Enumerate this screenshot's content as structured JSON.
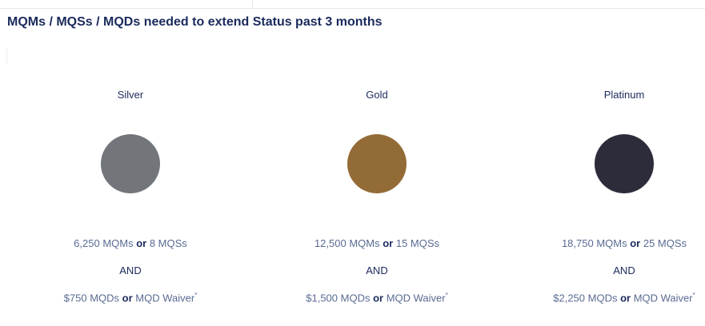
{
  "heading": "MQMs / MQSs / MQDs needed to extend Status past 3 months",
  "tiers": [
    {
      "name": "Silver",
      "color": "#72767b",
      "miles": "6,250 MQMs",
      "or1": "or",
      "segments": "8 MQSs",
      "and": "AND",
      "dollars": "$750 MQDs",
      "or2": "or",
      "waiver": "MQD Waiver",
      "waiver_mark": "*"
    },
    {
      "name": "Gold",
      "color": "#936b36",
      "miles": "12,500 MQMs",
      "or1": "or",
      "segments": "15 MQSs",
      "and": "AND",
      "dollars": "$1,500 MQDs",
      "or2": "or",
      "waiver": "MQD Waiver",
      "waiver_mark": "*"
    },
    {
      "name": "Platinum",
      "color": "#2c2c3b",
      "miles": "18,750 MQMs",
      "or1": "or",
      "segments": "25 MQSs",
      "and": "AND",
      "dollars": "$2,250 MQDs",
      "or2": "or",
      "waiver": "MQD Waiver",
      "waiver_mark": "*"
    }
  ]
}
